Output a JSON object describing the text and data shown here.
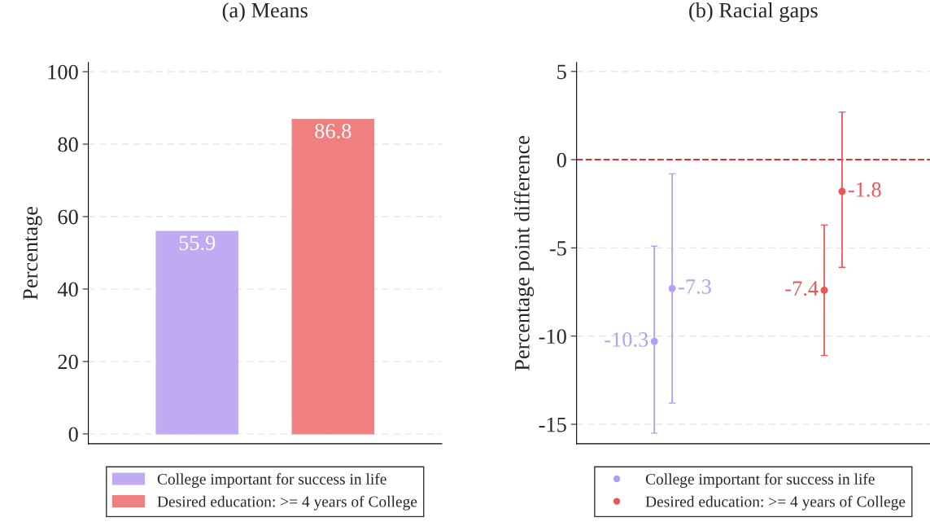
{
  "chart_data": [
    {
      "type": "bar",
      "title": "(a) Means",
      "ylabel": "Percentage",
      "categories": [
        null,
        null
      ],
      "ylim": [
        -2.7,
        102.5
      ],
      "yticks": [
        0,
        20,
        40,
        60,
        80,
        100
      ],
      "grid": "y",
      "legend": "bottom",
      "data_labels": true,
      "tick_labels": "y",
      "series": [
        {
          "name": "College important for success in life",
          "color": "#c0aaf2",
          "values": [
            55.9,
            null
          ]
        },
        {
          "name": "Desired education: >= 4 years of College",
          "color": "#f08080",
          "values": [
            null,
            86.8
          ]
        }
      ]
    },
    {
      "type": "scatter",
      "title": "(b) Racial gaps",
      "ylabel": "Percentage point difference",
      "categories": [
        null,
        null
      ],
      "ylim": [
        -16.1,
        5.5
      ],
      "yticks": [
        {
          "value": 5,
          "label": "5"
        },
        {
          "value": 0,
          "label": "0"
        },
        {
          "value": -5,
          "label": "-5"
        },
        {
          "value": -10,
          "label": "-10"
        },
        {
          "value": -15,
          "label": "-15"
        }
      ],
      "grid": "y",
      "legend": "bottom",
      "marker": "circle",
      "tick_labels": "y",
      "ref_lines": [
        {
          "axis": "y",
          "value": 0,
          "color": "#e03030",
          "line_style": "dashed"
        }
      ],
      "series": [
        {
          "name": "College important for success in life",
          "color": "#b49ef0",
          "values": [
            -10.3,
            null
          ],
          "errors": [
            [
              -15.5,
              -4.9
            ],
            null
          ],
          "value_labels": [
            "-10.3",
            null
          ]
        },
        {
          "color": "#b49ef0",
          "values": [
            -7.3,
            null
          ],
          "errors": [
            [
              -13.8,
              -0.8
            ],
            null
          ],
          "value_labels": [
            "-7.3",
            null
          ]
        },
        {
          "name": "Desired education: >= 4 years of College",
          "color": "#e85858",
          "values": [
            null,
            -7.4
          ],
          "errors": [
            null,
            [
              -11.1,
              -3.7
            ]
          ],
          "value_labels": [
            null,
            "-7.4"
          ]
        },
        {
          "color": "#e85858",
          "values": [
            null,
            -1.8
          ],
          "errors": [
            null,
            [
              -6.1,
              2.7
            ]
          ],
          "value_labels": [
            null,
            "-1.8"
          ]
        }
      ]
    }
  ]
}
